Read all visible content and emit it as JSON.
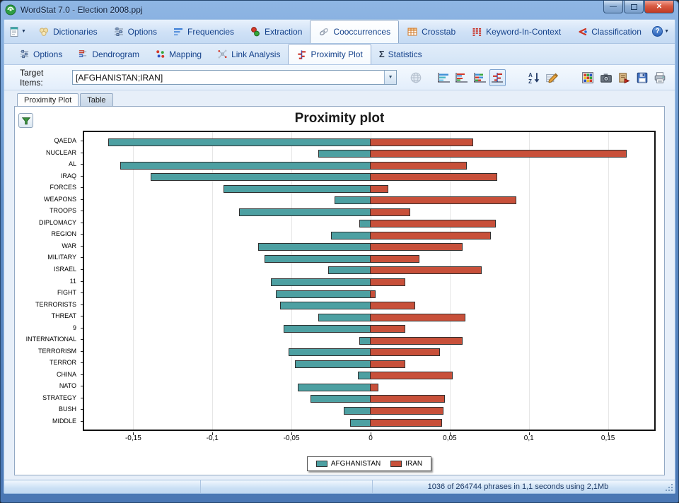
{
  "window": {
    "title": "WordStat 7.0 - Election 2008.ppj"
  },
  "icons": {
    "help": "?",
    "statistics": "Σ",
    "combo_dropdown": "▼",
    "minimize": "—",
    "close": "✕"
  },
  "main_tabs": [
    {
      "label": "Dictionaries"
    },
    {
      "label": "Options"
    },
    {
      "label": "Frequencies"
    },
    {
      "label": "Extraction"
    },
    {
      "label": "Cooccurrences",
      "active": true
    },
    {
      "label": "Crosstab"
    },
    {
      "label": "Keyword-In-Context"
    },
    {
      "label": "Classification"
    }
  ],
  "sub_tabs": [
    {
      "label": "Options"
    },
    {
      "label": "Dendrogram"
    },
    {
      "label": "Mapping"
    },
    {
      "label": "Link Analysis"
    },
    {
      "label": "Proximity Plot",
      "active": true
    },
    {
      "label": "Statistics"
    }
  ],
  "target_bar": {
    "label": "Target Items:",
    "value": "[AFGHANISTAN;IRAN]"
  },
  "view_tabs": [
    "Proximity Plot",
    "Table"
  ],
  "chart_data": {
    "type": "bar",
    "orientation": "horizontal-diverging",
    "title": "Proximity plot",
    "categories": [
      "QAEDA",
      "NUCLEAR",
      "AL",
      "IRAQ",
      "FORCES",
      "WEAPONS",
      "TROOPS",
      "DIPLOMACY",
      "REGION",
      "WAR",
      "MILITARY",
      "ISRAEL",
      "11",
      "FIGHT",
      "TERRORISTS",
      "THREAT",
      "9",
      "INTERNATIONAL",
      "TERRORISM",
      "TERROR",
      "CHINA",
      "NATO",
      "STRATEGY",
      "BUSH",
      "MIDDLE"
    ],
    "series": [
      {
        "name": "AFGHANISTAN",
        "color": "#4DA0A2",
        "values": [
          -0.166,
          -0.033,
          -0.158,
          -0.139,
          -0.093,
          -0.023,
          -0.083,
          -0.007,
          -0.025,
          -0.071,
          -0.067,
          -0.027,
          -0.063,
          -0.06,
          -0.057,
          -0.033,
          -0.055,
          -0.007,
          -0.052,
          -0.048,
          -0.008,
          -0.046,
          -0.038,
          -0.017,
          -0.013
        ]
      },
      {
        "name": "IRAN",
        "color": "#C8503A",
        "values": [
          0.065,
          0.162,
          0.061,
          0.08,
          0.011,
          0.092,
          0.025,
          0.079,
          0.076,
          0.058,
          0.031,
          0.07,
          0.022,
          0.003,
          0.028,
          0.06,
          0.022,
          0.058,
          0.044,
          0.022,
          0.052,
          0.005,
          0.047,
          0.046,
          0.045
        ]
      }
    ],
    "xlim": [
      -0.181,
      0.181
    ],
    "x_ticks": [
      "-0,15",
      "-0,1",
      "-0,05",
      "0",
      "0,05",
      "0,1",
      "0,15"
    ],
    "x_tick_values": [
      -0.15,
      -0.1,
      -0.05,
      0,
      0.05,
      0.1,
      0.15
    ],
    "grid": true,
    "legend_position": "bottom-center"
  },
  "status_bar": {
    "text": "1036 of 264744 phrases in 1,1 seconds using 2,1Mb"
  }
}
